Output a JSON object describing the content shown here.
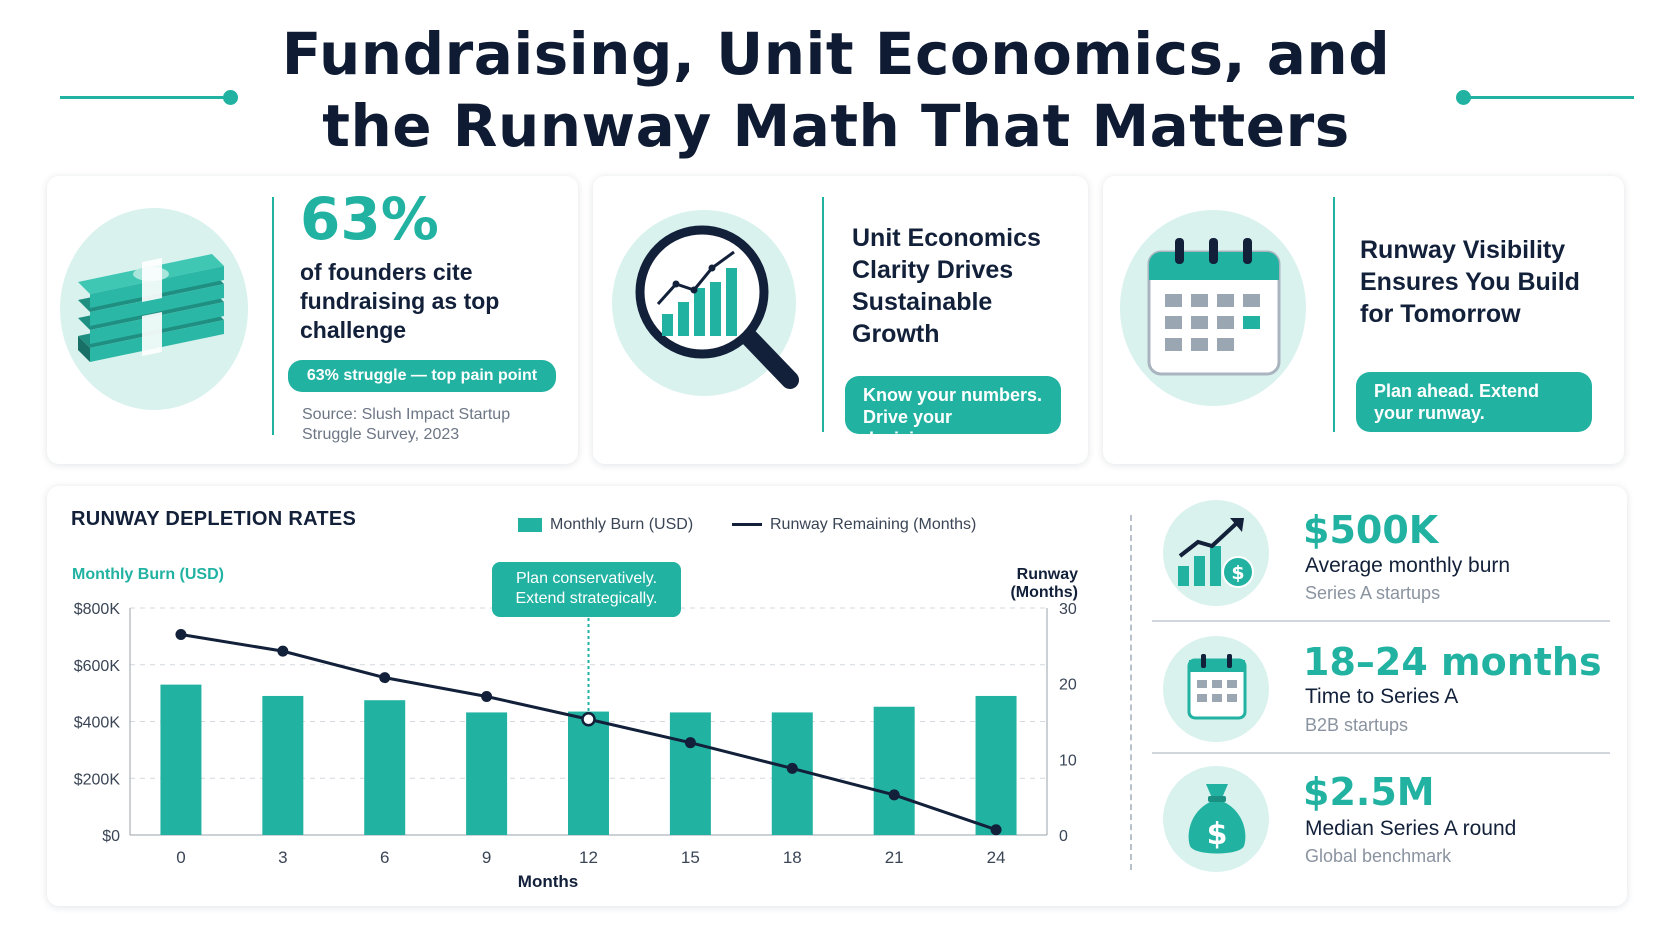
{
  "title": {
    "line1": "Fundraising, Unit Economics, and",
    "line2": "the Runway Math That Matters"
  },
  "cards": [
    {
      "icon": "money-stack-icon",
      "big_value": "63%",
      "text": "of founders cite fundraising as top challenge",
      "pill": "63% struggle — top pain point",
      "source": "Source: Slush Impact Startup Struggle Survey, 2023"
    },
    {
      "icon": "magnifier-chart-icon",
      "title": "Unit Economics Clarity Drives Sustainable Growth",
      "pill_line1": "Know your numbers.",
      "pill_line2": "Drive your decisions."
    },
    {
      "icon": "calendar-icon",
      "title": "Runway Visibility Ensures You Build for Tomorrow",
      "pill_line1": "Plan ahead. Extend",
      "pill_line2": "your runway."
    }
  ],
  "chart_data": {
    "type": "bar",
    "title": "RUNWAY DEPLETION RATES",
    "xlabel": "Months",
    "ylabel_left": "Monthly Burn (USD)",
    "ylabel_right": "Runway (Months)",
    "categories": [
      "0",
      "3",
      "6",
      "9",
      "12",
      "15",
      "18",
      "21",
      "24"
    ],
    "y_left_ticks": [
      "$0",
      "$200K",
      "$400K",
      "$600K",
      "$800K"
    ],
    "y_right_ticks": [
      "0",
      "10",
      "20",
      "30"
    ],
    "ylim_left": [
      0,
      800000
    ],
    "ylim_right": [
      0,
      30
    ],
    "series": [
      {
        "name": "Monthly Burn (USD)",
        "type": "bar",
        "axis": "left",
        "values": [
          530000,
          490000,
          475000,
          432000,
          435000,
          432000,
          432000,
          452000,
          490000
        ]
      },
      {
        "name": "Runway Remaining (Months)",
        "type": "line",
        "axis": "right",
        "values": [
          26.5,
          24.3,
          20.8,
          18.3,
          15.3,
          12.2,
          8.8,
          5.3,
          0.7
        ]
      }
    ],
    "annotation": {
      "line1": "Plan conservatively.",
      "line2": "Extend strategically.",
      "x": "12"
    },
    "legend": "top",
    "grid": true,
    "colors": {
      "bar": "#21b2a2",
      "line": "#12203a"
    }
  },
  "stats": [
    {
      "icon": "growth-chart-dollar-icon",
      "value": "$500K",
      "label": "Average monthly burn",
      "sub": "Series A startups"
    },
    {
      "icon": "calendar-icon",
      "value": "18–24 months",
      "label": "Time to Series A",
      "sub": "B2B startups"
    },
    {
      "icon": "money-bag-icon",
      "value": "$2.5M",
      "label": "Median Series A round",
      "sub": "Global benchmark"
    }
  ]
}
